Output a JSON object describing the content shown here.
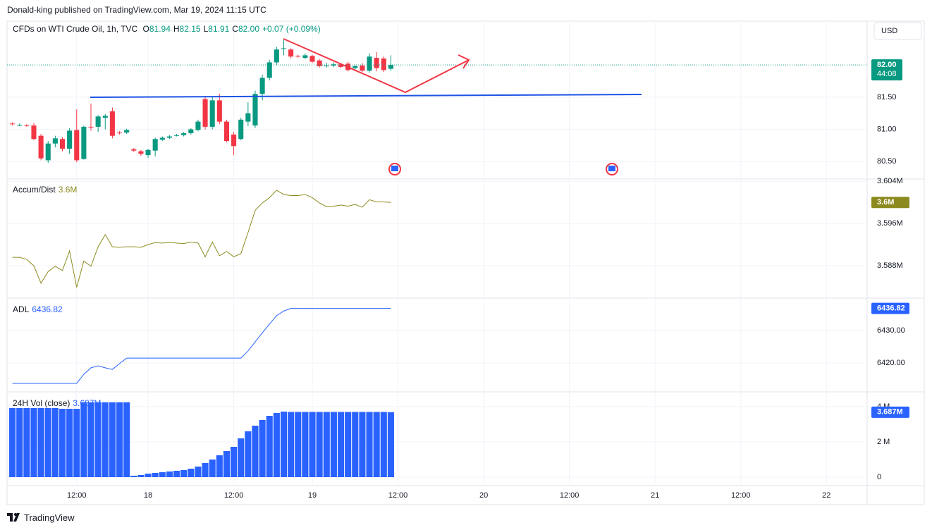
{
  "header": "Donald-king published on TradingView.com, Mar 19, 2024 11:15 UTC",
  "footer": "TradingView",
  "currency": "USD",
  "chart_data": [
    {
      "type": "candlestick",
      "title": "CFDs on WTI Crude Oil, 1h, TVC",
      "legend": [
        {
          "key": "O",
          "value": "81.94"
        },
        {
          "key": "H",
          "value": "82.15"
        },
        {
          "key": "L",
          "value": "81.91"
        },
        {
          "key": "C",
          "value": "82.00"
        }
      ],
      "change": "+0.07 (+0.09%)",
      "last_price_label": "82.00",
      "countdown": "44:08",
      "up_color": "#089981",
      "down_color": "#f23645",
      "xlim": [
        -19.75,
        100.7
      ],
      "xticks": [
        {
          "value": -10,
          "label": "12:00"
        },
        {
          "value": 0,
          "label": "18"
        },
        {
          "value": 12,
          "label": "12:00"
        },
        {
          "value": 23,
          "label": "19"
        },
        {
          "value": 35,
          "label": "12:00"
        },
        {
          "value": 47,
          "label": "20"
        },
        {
          "value": 59,
          "label": "12:00"
        },
        {
          "value": 71,
          "label": "21"
        },
        {
          "value": 83,
          "label": "12:00"
        },
        {
          "value": 95,
          "label": "22"
        }
      ],
      "x": [
        -19,
        -18,
        -17,
        -16,
        -15,
        -14,
        -13,
        -12,
        -11,
        -10,
        -9,
        -8,
        -7,
        -6,
        -5,
        -4,
        -3,
        -2,
        -1,
        0,
        1,
        2,
        3,
        4,
        5,
        6,
        7,
        8,
        9,
        10,
        11,
        12,
        13,
        14,
        15,
        16,
        17,
        18,
        19,
        20,
        21,
        22,
        23,
        24,
        25,
        26,
        27,
        28,
        29,
        30,
        31,
        32,
        33,
        34
      ],
      "open": [
        81.09,
        81.07,
        81.06,
        81.06,
        80.9,
        80.52,
        80.78,
        80.85,
        80.7,
        80.99,
        80.54,
        81.04,
        81.04,
        81.18,
        81.28,
        80.95,
        80.95,
        80.69,
        80.66,
        80.6,
        80.67,
        80.84,
        80.87,
        80.91,
        80.91,
        80.94,
        80.99,
        81.47,
        81.04,
        81.45,
        81.12,
        80.92,
        80.85,
        81.12,
        81.06,
        81.55,
        81.8,
        82.04,
        82.25,
        82.24,
        82.14,
        82.11,
        82.14,
        82.07,
        81.99,
        81.99,
        82.01,
        82.02,
        81.95,
        81.99,
        81.91,
        82.11,
        82.1,
        81.94
      ],
      "high": [
        81.11,
        81.09,
        81.08,
        81.1,
        80.93,
        80.82,
        80.9,
        80.88,
        81.02,
        81.31,
        81.06,
        81.4,
        81.22,
        81.24,
        81.34,
        80.97,
        81.01,
        80.71,
        80.68,
        80.7,
        80.87,
        80.89,
        80.91,
        80.93,
        80.96,
        81.02,
        81.15,
        81.52,
        81.5,
        81.55,
        81.15,
        80.96,
        81.18,
        81.42,
        81.6,
        81.85,
        82.08,
        82.28,
        82.4,
        82.26,
        82.16,
        82.18,
        82.16,
        82.09,
        82.03,
        82.04,
        82.03,
        82.05,
        82.0,
        82.03,
        82.18,
        82.2,
        82.13,
        82.15
      ],
      "low": [
        81.06,
        81.05,
        81.04,
        80.83,
        80.52,
        80.48,
        80.72,
        80.66,
        80.62,
        80.49,
        80.53,
        80.98,
        80.96,
        81.0,
        80.86,
        80.92,
        80.93,
        80.65,
        80.59,
        80.56,
        80.58,
        80.82,
        80.85,
        80.89,
        80.89,
        80.92,
        80.97,
        81.0,
        81.0,
        81.08,
        80.8,
        80.6,
        80.83,
        81.05,
        81.02,
        81.45,
        81.76,
        82.0,
        82.15,
        82.1,
        82.11,
        82.09,
        82.03,
        81.96,
        81.96,
        81.97,
        81.95,
        81.9,
        81.93,
        81.89,
        81.88,
        81.9,
        81.89,
        81.91
      ],
      "close": [
        81.08,
        81.07,
        81.05,
        80.85,
        80.55,
        80.78,
        80.86,
        80.7,
        80.98,
        80.52,
        81.04,
        81.03,
        81.2,
        81.21,
        80.9,
        80.94,
        80.99,
        80.67,
        80.62,
        80.68,
        80.85,
        80.87,
        80.89,
        80.91,
        80.94,
        81.0,
        81.12,
        81.04,
        81.45,
        81.12,
        80.82,
        80.74,
        81.15,
        81.25,
        81.55,
        81.8,
        82.04,
        82.24,
        82.26,
        82.13,
        82.13,
        82.15,
        82.05,
        81.98,
        81.99,
        82.01,
        81.97,
        81.92,
        81.98,
        81.91,
        82.13,
        81.95,
        81.92,
        82.0
      ],
      "ylim": [
        80.24,
        82.68
      ],
      "yticks": [
        {
          "value": 80.5,
          "label": "80.50"
        },
        {
          "value": 81,
          "label": "81.00"
        },
        {
          "value": 81.5,
          "label": "81.50"
        }
      ]
    },
    {
      "type": "line",
      "title": "Accum/Dist",
      "value_label": "3.6M",
      "color": "#8c8a1e",
      "x": [
        -19,
        -18,
        -17,
        -16,
        -15,
        -14,
        -13,
        -12,
        -11,
        -10,
        -9,
        -8,
        -7,
        -6,
        -5,
        -4,
        -3,
        -2,
        -1,
        0,
        1,
        2,
        3,
        4,
        5,
        6,
        7,
        8,
        9,
        10,
        11,
        12,
        13,
        14,
        15,
        16,
        17,
        18,
        19,
        20,
        21,
        22,
        23,
        24,
        25,
        26,
        27,
        28,
        29,
        30,
        31,
        32,
        33,
        34
      ],
      "values": [
        3.5896,
        3.5896,
        3.5892,
        3.588,
        3.5847,
        3.5869,
        3.5879,
        3.5871,
        3.5908,
        3.5839,
        3.5889,
        3.5879,
        3.5916,
        3.5939,
        3.5916,
        3.5915,
        3.5916,
        3.5916,
        3.5915,
        3.592,
        3.5924,
        3.5923,
        3.5924,
        3.5923,
        3.5922,
        3.5925,
        3.5923,
        3.5897,
        3.5925,
        3.5899,
        3.5907,
        3.5897,
        3.5903,
        3.5943,
        3.5985,
        3.5999,
        3.6009,
        3.6023,
        3.6015,
        3.6013,
        3.6013,
        3.6015,
        3.6009,
        3.5999,
        3.5992,
        3.5993,
        3.5995,
        3.5993,
        3.5996,
        3.5991,
        3.6005,
        3.6001,
        3.6001,
        3.6
      ],
      "ylim": [
        3.582,
        3.6043
      ],
      "yticks": [
        {
          "value": 3.588,
          "label": "3.588M"
        },
        {
          "value": 3.596,
          "label": "3.596M"
        },
        {
          "value": 3.604,
          "label": "3.604M"
        }
      ]
    },
    {
      "type": "line",
      "title": "ADL",
      "value_label": "6436.82",
      "color": "#2962ff",
      "x": [
        -19,
        -18,
        -17,
        -16,
        -15,
        -14,
        -13,
        -12,
        -11,
        -10,
        -9,
        -8,
        -7,
        -6,
        -5,
        -4,
        -3,
        -2,
        -1,
        0,
        1,
        2,
        3,
        4,
        5,
        6,
        7,
        8,
        9,
        10,
        11,
        12,
        13,
        14,
        15,
        16,
        17,
        18,
        19,
        20,
        21,
        22,
        23,
        24,
        25,
        26,
        27,
        28,
        29,
        30,
        31,
        32,
        33,
        34
      ],
      "values": [
        6413.7,
        6413.7,
        6413.7,
        6413.7,
        6413.7,
        6413.7,
        6413.7,
        6413.7,
        6413.7,
        6413.7,
        6416.5,
        6418.5,
        6419.1,
        6418.5,
        6418.0,
        6419.8,
        6421.5,
        6421.5,
        6421.5,
        6421.5,
        6421.5,
        6421.5,
        6421.5,
        6421.5,
        6421.5,
        6421.5,
        6421.5,
        6421.5,
        6421.5,
        6421.5,
        6421.5,
        6421.5,
        6421.5,
        6423.7,
        6426.5,
        6429.3,
        6432.0,
        6434.6,
        6436.0,
        6436.82,
        6436.82,
        6436.82,
        6436.82,
        6436.82,
        6436.82,
        6436.82,
        6436.82,
        6436.82,
        6436.82,
        6436.82,
        6436.82,
        6436.82,
        6436.82,
        6436.82
      ],
      "ylim": [
        6411.3,
        6439.78
      ],
      "yticks": [
        {
          "value": 6420,
          "label": "6420.00"
        },
        {
          "value": 6430,
          "label": "6430.00"
        }
      ]
    },
    {
      "type": "bar",
      "title": "24H Vol (close)",
      "value_label": "3.687M",
      "color": "#2962ff",
      "x": [
        -19,
        -18,
        -17,
        -16,
        -15,
        -14,
        -13,
        -12,
        -11,
        -10,
        -9,
        -8,
        -7,
        -6,
        -5,
        -4,
        -3,
        -2,
        -1,
        0,
        1,
        2,
        3,
        4,
        5,
        6,
        7,
        8,
        9,
        10,
        11,
        12,
        13,
        14,
        15,
        16,
        17,
        18,
        19,
        20,
        21,
        22,
        23,
        24,
        25,
        26,
        27,
        28,
        29,
        30,
        31,
        32,
        33,
        34
      ],
      "values": [
        3.92,
        3.92,
        3.92,
        3.92,
        3.92,
        3.92,
        3.92,
        3.88,
        3.88,
        3.88,
        4.25,
        4.25,
        4.25,
        4.25,
        4.25,
        4.25,
        4.25,
        0.08,
        0.12,
        0.2,
        0.24,
        0.28,
        0.32,
        0.36,
        0.4,
        0.48,
        0.6,
        0.8,
        1.0,
        1.24,
        1.48,
        1.72,
        2.2,
        2.6,
        2.92,
        3.24,
        3.48,
        3.64,
        3.72,
        3.7,
        3.7,
        3.7,
        3.7,
        3.7,
        3.7,
        3.7,
        3.7,
        3.7,
        3.7,
        3.7,
        3.7,
        3.7,
        3.7,
        3.687
      ],
      "ylim": [
        -0.44,
        4.8
      ],
      "yticks": [
        0,
        {
          "value": 2,
          "label": "2 M"
        },
        {
          "value": 4,
          "label": "4 M"
        }
      ]
    }
  ]
}
